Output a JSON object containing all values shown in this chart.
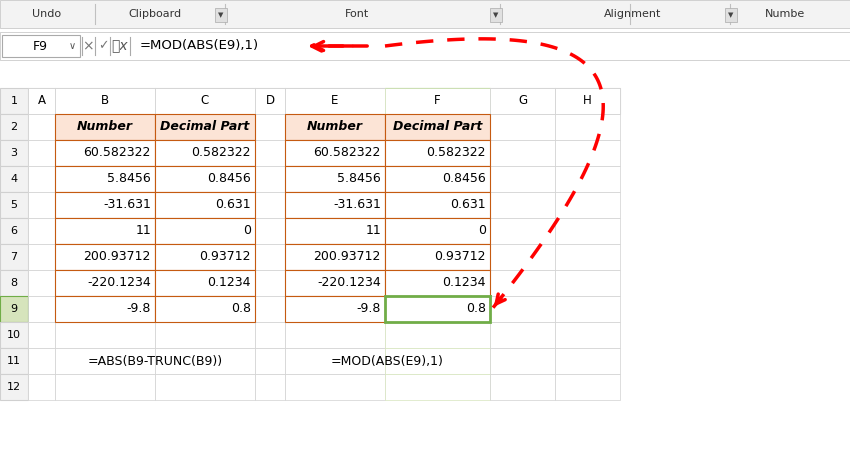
{
  "toolbar_bg": "#f0f0f0",
  "toolbar_items": [
    "Undo",
    "Clipboard",
    "Font",
    "Alignment",
    "Numbe"
  ],
  "formula_bar_text": "=MOD(ABS(E9),1)",
  "cell_ref": "F9",
  "col_headers": [
    "A",
    "B",
    "C",
    "D",
    "E",
    "F",
    "G",
    "H"
  ],
  "row_numbers": [
    "1",
    "2",
    "3",
    "4",
    "5",
    "6",
    "7",
    "8",
    "9",
    "10",
    "11",
    "12"
  ],
  "table1_header": [
    "Number",
    "Decimal Part"
  ],
  "table2_header": [
    "Number",
    "Decimal Part"
  ],
  "table1_data": [
    [
      "60.582322",
      "0.582322"
    ],
    [
      "5.8456",
      "0.8456"
    ],
    [
      "-31.631",
      "0.631"
    ],
    [
      "11",
      "0"
    ],
    [
      "200.93712",
      "0.93712"
    ],
    [
      "-220.1234",
      "0.1234"
    ],
    [
      "-9.8",
      "0.8"
    ]
  ],
  "table2_data": [
    [
      "60.582322",
      "0.582322"
    ],
    [
      "5.8456",
      "0.8456"
    ],
    [
      "-31.631",
      "0.631"
    ],
    [
      "11",
      "0"
    ],
    [
      "200.93712",
      "0.93712"
    ],
    [
      "-220.1234",
      "0.1234"
    ],
    [
      "-9.8",
      "0.8"
    ]
  ],
  "formula1": "=ABS(B9-TRUNC(B9))",
  "formula2": "=MOD(ABS(E9),1)",
  "header_fill": "#fce4d6",
  "header_border": "#c55a11",
  "cell_bg": "#ffffff",
  "grid_color": "#d0d0d0",
  "selected_cell_border": "#70ad47",
  "selected_col_header_bg": "#d6e4bc",
  "active_row_border": "#217346",
  "toolbar_border": "#c0c0c0",
  "formula_bar_bg": "#ffffff",
  "col_header_bg": "#f2f2f2",
  "row_header_bg": "#f2f2f2",
  "arrow_color": "#ff0000",
  "bg_color": "#ffffff",
  "font_color": "#000000",
  "font_size": 9,
  "title_font_size": 10
}
